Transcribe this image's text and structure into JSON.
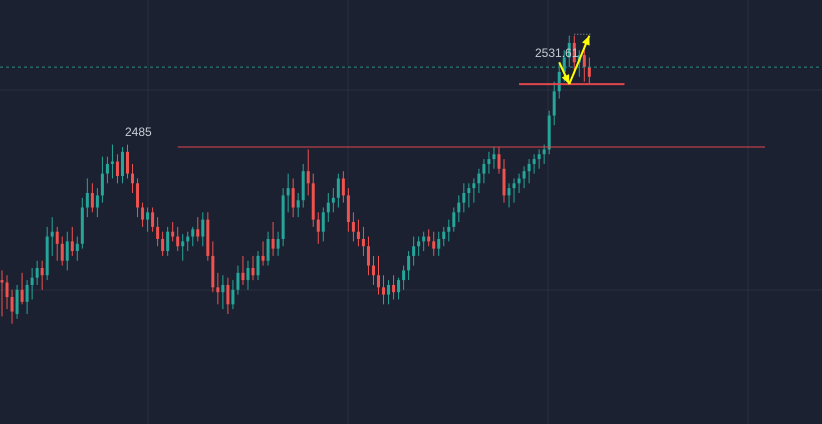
{
  "chart_data": {
    "type": "candlestick",
    "title": "",
    "xlabel": "",
    "ylabel": "",
    "grid": true,
    "colors": {
      "background": "#1b2130",
      "grid": "#28303e",
      "up": "#26a69a",
      "down": "#ef5350",
      "level_line": "#e0464c",
      "arrow": "#ffff00",
      "current_price_line": "#2b8f87",
      "text": "#c8ccd4"
    },
    "annotations": {
      "resistance_label": "2485",
      "resistance_value": 2485,
      "high_label": "2531.61",
      "high_value": 2531.61,
      "support_value": 2511,
      "current_price_value": 2518
    },
    "arrows": [
      {
        "from": [
          111,
          2520
        ],
        "to": [
          113,
          2511
        ]
      },
      {
        "from": [
          113,
          2511
        ],
        "to": [
          117,
          2531
        ]
      }
    ],
    "levels": [
      {
        "start_index": 35,
        "end_index": 152
      },
      {
        "start_index": 103,
        "end_index": 124
      }
    ],
    "candles": [
      {
        "o": 2430,
        "h": 2434,
        "l": 2415,
        "c": 2429
      },
      {
        "o": 2429,
        "h": 2432,
        "l": 2418,
        "c": 2423
      },
      {
        "o": 2423,
        "h": 2426,
        "l": 2412,
        "c": 2417
      },
      {
        "o": 2416,
        "h": 2428,
        "l": 2414,
        "c": 2426
      },
      {
        "o": 2426,
        "h": 2433,
        "l": 2420,
        "c": 2421
      },
      {
        "o": 2421,
        "h": 2430,
        "l": 2416,
        "c": 2428
      },
      {
        "o": 2428,
        "h": 2435,
        "l": 2422,
        "c": 2431
      },
      {
        "o": 2431,
        "h": 2438,
        "l": 2428,
        "c": 2435
      },
      {
        "o": 2435,
        "h": 2438,
        "l": 2426,
        "c": 2432
      },
      {
        "o": 2432,
        "h": 2452,
        "l": 2430,
        "c": 2448
      },
      {
        "o": 2448,
        "h": 2456,
        "l": 2440,
        "c": 2450
      },
      {
        "o": 2450,
        "h": 2452,
        "l": 2438,
        "c": 2445
      },
      {
        "o": 2445,
        "h": 2448,
        "l": 2436,
        "c": 2438
      },
      {
        "o": 2438,
        "h": 2450,
        "l": 2434,
        "c": 2446
      },
      {
        "o": 2446,
        "h": 2452,
        "l": 2440,
        "c": 2442
      },
      {
        "o": 2442,
        "h": 2448,
        "l": 2438,
        "c": 2445
      },
      {
        "o": 2445,
        "h": 2464,
        "l": 2443,
        "c": 2460
      },
      {
        "o": 2460,
        "h": 2472,
        "l": 2456,
        "c": 2466
      },
      {
        "o": 2466,
        "h": 2470,
        "l": 2458,
        "c": 2460
      },
      {
        "o": 2460,
        "h": 2468,
        "l": 2456,
        "c": 2465
      },
      {
        "o": 2465,
        "h": 2481,
        "l": 2462,
        "c": 2474
      },
      {
        "o": 2474,
        "h": 2481,
        "l": 2470,
        "c": 2478
      },
      {
        "o": 2478,
        "h": 2486,
        "l": 2472,
        "c": 2479
      },
      {
        "o": 2479,
        "h": 2482,
        "l": 2470,
        "c": 2473
      },
      {
        "o": 2473,
        "h": 2485,
        "l": 2470,
        "c": 2483
      },
      {
        "o": 2483,
        "h": 2486,
        "l": 2472,
        "c": 2474
      },
      {
        "o": 2474,
        "h": 2478,
        "l": 2466,
        "c": 2470
      },
      {
        "o": 2470,
        "h": 2472,
        "l": 2456,
        "c": 2460
      },
      {
        "o": 2460,
        "h": 2462,
        "l": 2452,
        "c": 2455
      },
      {
        "o": 2455,
        "h": 2460,
        "l": 2450,
        "c": 2458
      },
      {
        "o": 2458,
        "h": 2460,
        "l": 2450,
        "c": 2452
      },
      {
        "o": 2452,
        "h": 2456,
        "l": 2444,
        "c": 2447
      },
      {
        "o": 2447,
        "h": 2450,
        "l": 2440,
        "c": 2442
      },
      {
        "o": 2442,
        "h": 2452,
        "l": 2440,
        "c": 2450
      },
      {
        "o": 2450,
        "h": 2454,
        "l": 2446,
        "c": 2448
      },
      {
        "o": 2448,
        "h": 2452,
        "l": 2442,
        "c": 2444
      },
      {
        "o": 2444,
        "h": 2449,
        "l": 2438,
        "c": 2446
      },
      {
        "o": 2446,
        "h": 2450,
        "l": 2442,
        "c": 2448
      },
      {
        "o": 2448,
        "h": 2452,
        "l": 2444,
        "c": 2451
      },
      {
        "o": 2451,
        "h": 2456,
        "l": 2446,
        "c": 2448
      },
      {
        "o": 2448,
        "h": 2458,
        "l": 2444,
        "c": 2455
      },
      {
        "o": 2455,
        "h": 2458,
        "l": 2438,
        "c": 2440
      },
      {
        "o": 2440,
        "h": 2446,
        "l": 2425,
        "c": 2427
      },
      {
        "o": 2427,
        "h": 2433,
        "l": 2420,
        "c": 2425
      },
      {
        "o": 2425,
        "h": 2432,
        "l": 2418,
        "c": 2428
      },
      {
        "o": 2428,
        "h": 2431,
        "l": 2416,
        "c": 2420
      },
      {
        "o": 2420,
        "h": 2430,
        "l": 2418,
        "c": 2426
      },
      {
        "o": 2426,
        "h": 2436,
        "l": 2424,
        "c": 2433
      },
      {
        "o": 2433,
        "h": 2440,
        "l": 2428,
        "c": 2430
      },
      {
        "o": 2430,
        "h": 2438,
        "l": 2426,
        "c": 2435
      },
      {
        "o": 2435,
        "h": 2440,
        "l": 2430,
        "c": 2432
      },
      {
        "o": 2432,
        "h": 2442,
        "l": 2430,
        "c": 2440
      },
      {
        "o": 2440,
        "h": 2446,
        "l": 2436,
        "c": 2438
      },
      {
        "o": 2438,
        "h": 2450,
        "l": 2436,
        "c": 2447
      },
      {
        "o": 2447,
        "h": 2454,
        "l": 2440,
        "c": 2443
      },
      {
        "o": 2443,
        "h": 2450,
        "l": 2440,
        "c": 2447
      },
      {
        "o": 2447,
        "h": 2468,
        "l": 2444,
        "c": 2465
      },
      {
        "o": 2465,
        "h": 2474,
        "l": 2458,
        "c": 2468
      },
      {
        "o": 2468,
        "h": 2472,
        "l": 2456,
        "c": 2460
      },
      {
        "o": 2460,
        "h": 2466,
        "l": 2456,
        "c": 2463
      },
      {
        "o": 2463,
        "h": 2478,
        "l": 2460,
        "c": 2475
      },
      {
        "o": 2475,
        "h": 2484,
        "l": 2465,
        "c": 2470
      },
      {
        "o": 2470,
        "h": 2474,
        "l": 2452,
        "c": 2455
      },
      {
        "o": 2455,
        "h": 2458,
        "l": 2445,
        "c": 2450
      },
      {
        "o": 2450,
        "h": 2460,
        "l": 2446,
        "c": 2458
      },
      {
        "o": 2458,
        "h": 2466,
        "l": 2454,
        "c": 2462
      },
      {
        "o": 2462,
        "h": 2468,
        "l": 2458,
        "c": 2464
      },
      {
        "o": 2464,
        "h": 2474,
        "l": 2460,
        "c": 2472
      },
      {
        "o": 2472,
        "h": 2475,
        "l": 2462,
        "c": 2465
      },
      {
        "o": 2465,
        "h": 2468,
        "l": 2450,
        "c": 2454
      },
      {
        "o": 2454,
        "h": 2458,
        "l": 2446,
        "c": 2450
      },
      {
        "o": 2450,
        "h": 2455,
        "l": 2444,
        "c": 2447
      },
      {
        "o": 2447,
        "h": 2452,
        "l": 2440,
        "c": 2444
      },
      {
        "o": 2444,
        "h": 2448,
        "l": 2432,
        "c": 2436
      },
      {
        "o": 2436,
        "h": 2440,
        "l": 2428,
        "c": 2432
      },
      {
        "o": 2432,
        "h": 2440,
        "l": 2424,
        "c": 2427
      },
      {
        "o": 2427,
        "h": 2432,
        "l": 2420,
        "c": 2424
      },
      {
        "o": 2424,
        "h": 2430,
        "l": 2420,
        "c": 2428
      },
      {
        "o": 2428,
        "h": 2432,
        "l": 2422,
        "c": 2425
      },
      {
        "o": 2425,
        "h": 2431,
        "l": 2422,
        "c": 2430
      },
      {
        "o": 2430,
        "h": 2436,
        "l": 2426,
        "c": 2434
      },
      {
        "o": 2434,
        "h": 2442,
        "l": 2430,
        "c": 2440
      },
      {
        "o": 2440,
        "h": 2448,
        "l": 2436,
        "c": 2444
      },
      {
        "o": 2444,
        "h": 2448,
        "l": 2440,
        "c": 2446
      },
      {
        "o": 2446,
        "h": 2450,
        "l": 2442,
        "c": 2448
      },
      {
        "o": 2448,
        "h": 2451,
        "l": 2444,
        "c": 2446
      },
      {
        "o": 2446,
        "h": 2450,
        "l": 2440,
        "c": 2443
      },
      {
        "o": 2443,
        "h": 2450,
        "l": 2440,
        "c": 2447
      },
      {
        "o": 2447,
        "h": 2452,
        "l": 2444,
        "c": 2450
      },
      {
        "o": 2450,
        "h": 2455,
        "l": 2446,
        "c": 2452
      },
      {
        "o": 2452,
        "h": 2460,
        "l": 2450,
        "c": 2458
      },
      {
        "o": 2458,
        "h": 2465,
        "l": 2454,
        "c": 2462
      },
      {
        "o": 2462,
        "h": 2470,
        "l": 2458,
        "c": 2466
      },
      {
        "o": 2466,
        "h": 2470,
        "l": 2460,
        "c": 2468
      },
      {
        "o": 2468,
        "h": 2472,
        "l": 2462,
        "c": 2470
      },
      {
        "o": 2470,
        "h": 2476,
        "l": 2466,
        "c": 2474
      },
      {
        "o": 2474,
        "h": 2480,
        "l": 2470,
        "c": 2478
      },
      {
        "o": 2478,
        "h": 2483,
        "l": 2474,
        "c": 2480
      },
      {
        "o": 2480,
        "h": 2485,
        "l": 2476,
        "c": 2482
      },
      {
        "o": 2482,
        "h": 2485,
        "l": 2474,
        "c": 2476
      },
      {
        "o": 2476,
        "h": 2480,
        "l": 2462,
        "c": 2465
      },
      {
        "o": 2465,
        "h": 2470,
        "l": 2460,
        "c": 2468
      },
      {
        "o": 2468,
        "h": 2472,
        "l": 2462,
        "c": 2470
      },
      {
        "o": 2470,
        "h": 2474,
        "l": 2466,
        "c": 2472
      },
      {
        "o": 2472,
        "h": 2477,
        "l": 2468,
        "c": 2475
      },
      {
        "o": 2475,
        "h": 2480,
        "l": 2470,
        "c": 2478
      },
      {
        "o": 2478,
        "h": 2482,
        "l": 2474,
        "c": 2480
      },
      {
        "o": 2480,
        "h": 2484,
        "l": 2476,
        "c": 2482
      },
      {
        "o": 2482,
        "h": 2486,
        "l": 2478,
        "c": 2484
      },
      {
        "o": 2484,
        "h": 2500,
        "l": 2482,
        "c": 2498
      },
      {
        "o": 2498,
        "h": 2512,
        "l": 2494,
        "c": 2508
      },
      {
        "o": 2508,
        "h": 2520,
        "l": 2505,
        "c": 2516
      },
      {
        "o": 2516,
        "h": 2525,
        "l": 2512,
        "c": 2522
      },
      {
        "o": 2522,
        "h": 2531,
        "l": 2518,
        "c": 2528
      },
      {
        "o": 2528,
        "h": 2531,
        "l": 2515,
        "c": 2520
      },
      {
        "o": 2520,
        "h": 2525,
        "l": 2514,
        "c": 2523
      },
      {
        "o": 2523,
        "h": 2527,
        "l": 2512,
        "c": 2518
      },
      {
        "o": 2518,
        "h": 2522,
        "l": 2511,
        "c": 2514
      }
    ]
  }
}
